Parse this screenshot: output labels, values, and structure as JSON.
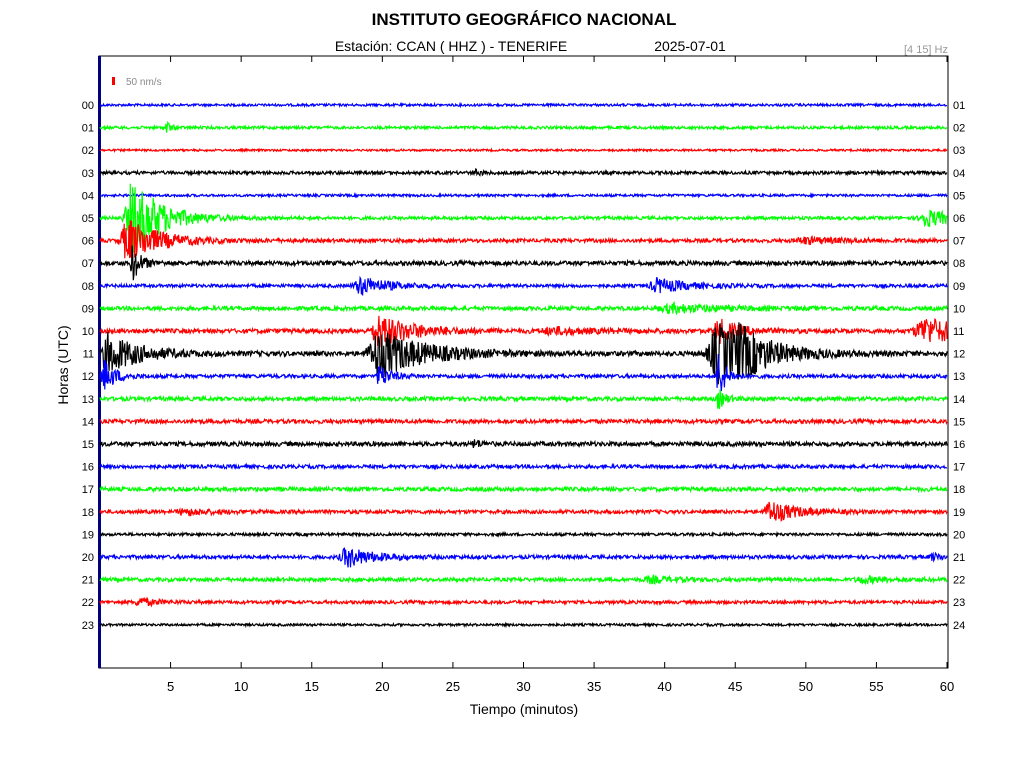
{
  "chart_data": {
    "type": "line",
    "title": "INSTITUTO GEOGRÁFICO NACIONAL",
    "subtitle_station": "Estación:  CCAN ( HHZ ) - TENERIFE",
    "subtitle_date": "2025-07-01",
    "filter_label": "[4 15] Hz",
    "scale_label": "50 nm/s",
    "xlabel": "Tiempo (minutos)",
    "ylabel": "Horas (UTC)",
    "xlim": [
      0,
      60
    ],
    "x_ticks": [
      "5",
      "10",
      "15",
      "20",
      "25",
      "30",
      "35",
      "40",
      "45",
      "50",
      "55",
      "60"
    ],
    "left_hour_labels": [
      "00",
      "01",
      "02",
      "03",
      "04",
      "05",
      "06",
      "07",
      "08",
      "09",
      "10",
      "11",
      "12",
      "13",
      "14",
      "15",
      "16",
      "17",
      "18",
      "19",
      "20",
      "21",
      "22",
      "23"
    ],
    "right_hour_labels": [
      "01",
      "02",
      "03",
      "04",
      "05",
      "06",
      "07",
      "08",
      "09",
      "10",
      "11",
      "12",
      "13",
      "14",
      "15",
      "16",
      "17",
      "18",
      "19",
      "20",
      "21",
      "22",
      "23",
      "24"
    ],
    "trace_colors": [
      "#0000ff",
      "#00ff00",
      "#ff0000",
      "#000000"
    ],
    "frame_color": "#000080",
    "series": [
      {
        "hour": 0,
        "noise": 1.2,
        "events": []
      },
      {
        "hour": 1,
        "noise": 1.4,
        "events": [
          {
            "t": 4.7,
            "amp": 7,
            "dur": 0.3
          }
        ]
      },
      {
        "hour": 2,
        "noise": 1.0,
        "events": []
      },
      {
        "hour": 3,
        "noise": 1.6,
        "events": [
          {
            "t": 26.5,
            "amp": 3,
            "dur": 0.5
          }
        ]
      },
      {
        "hour": 4,
        "noise": 1.2,
        "events": []
      },
      {
        "hour": 5,
        "noise": 1.6,
        "events": [
          {
            "t": 2.3,
            "amp": 40,
            "dur": 2.0
          },
          {
            "t": 58.5,
            "amp": 9,
            "dur": 1.8
          }
        ]
      },
      {
        "hour": 6,
        "noise": 1.8,
        "events": [
          {
            "t": 2.0,
            "amp": 22,
            "dur": 2.2
          },
          {
            "t": 50.0,
            "amp": 3,
            "dur": 3
          }
        ]
      },
      {
        "hour": 7,
        "noise": 2.2,
        "events": [
          {
            "t": 2.3,
            "amp": 18,
            "dur": 0.6
          }
        ]
      },
      {
        "hour": 8,
        "noise": 1.6,
        "events": [
          {
            "t": 18.5,
            "amp": 9,
            "dur": 2.0
          },
          {
            "t": 39.5,
            "amp": 7,
            "dur": 2.2
          }
        ]
      },
      {
        "hour": 9,
        "noise": 2.0,
        "events": [
          {
            "t": 40.5,
            "amp": 4,
            "dur": 3.5
          }
        ]
      },
      {
        "hour": 10,
        "noise": 2.2,
        "events": [
          {
            "t": 19.8,
            "amp": 16,
            "dur": 2.4
          },
          {
            "t": 43.8,
            "amp": 12,
            "dur": 1.4
          },
          {
            "t": 32.0,
            "amp": 3,
            "dur": 3
          },
          {
            "t": 58.5,
            "amp": 13,
            "dur": 3.2
          }
        ]
      },
      {
        "hour": 11,
        "noise": 2.4,
        "events": [
          {
            "t": 0.6,
            "amp": 20,
            "dur": 2.2
          },
          {
            "t": 19.8,
            "amp": 24,
            "dur": 3.2
          },
          {
            "t": 43.8,
            "amp": 30,
            "dur": 2.8
          },
          {
            "t": 45.3,
            "amp": 13,
            "dur": 1.8
          }
        ]
      },
      {
        "hour": 12,
        "noise": 1.8,
        "events": [
          {
            "t": 0.3,
            "amp": 16,
            "dur": 0.8
          },
          {
            "t": 19.8,
            "amp": 11,
            "dur": 0.8
          },
          {
            "t": 43.8,
            "amp": 26,
            "dur": 0.5
          }
        ]
      },
      {
        "hour": 13,
        "noise": 2.0,
        "events": [
          {
            "t": 43.8,
            "amp": 10,
            "dur": 0.5
          }
        ]
      },
      {
        "hour": 14,
        "noise": 2.0,
        "events": []
      },
      {
        "hour": 15,
        "noise": 2.2,
        "events": [
          {
            "t": 26.5,
            "amp": 4,
            "dur": 0.5
          }
        ]
      },
      {
        "hour": 16,
        "noise": 1.8,
        "events": []
      },
      {
        "hour": 17,
        "noise": 2.0,
        "events": []
      },
      {
        "hour": 18,
        "noise": 1.8,
        "events": [
          {
            "t": 6.0,
            "amp": 3,
            "dur": 2.0
          },
          {
            "t": 47.5,
            "amp": 11,
            "dur": 1.8
          }
        ]
      },
      {
        "hour": 19,
        "noise": 1.4,
        "events": []
      },
      {
        "hour": 20,
        "noise": 1.8,
        "events": [
          {
            "t": 17.5,
            "amp": 10,
            "dur": 1.8
          },
          {
            "t": 59.0,
            "amp": 3,
            "dur": 1.0
          }
        ]
      },
      {
        "hour": 21,
        "noise": 1.8,
        "events": [
          {
            "t": 39.0,
            "amp": 3,
            "dur": 2.0
          },
          {
            "t": 54.0,
            "amp": 3,
            "dur": 2.0
          }
        ]
      },
      {
        "hour": 22,
        "noise": 1.6,
        "events": [
          {
            "t": 2.8,
            "amp": 4,
            "dur": 1.2
          }
        ]
      },
      {
        "hour": 23,
        "noise": 1.2,
        "events": []
      }
    ]
  }
}
